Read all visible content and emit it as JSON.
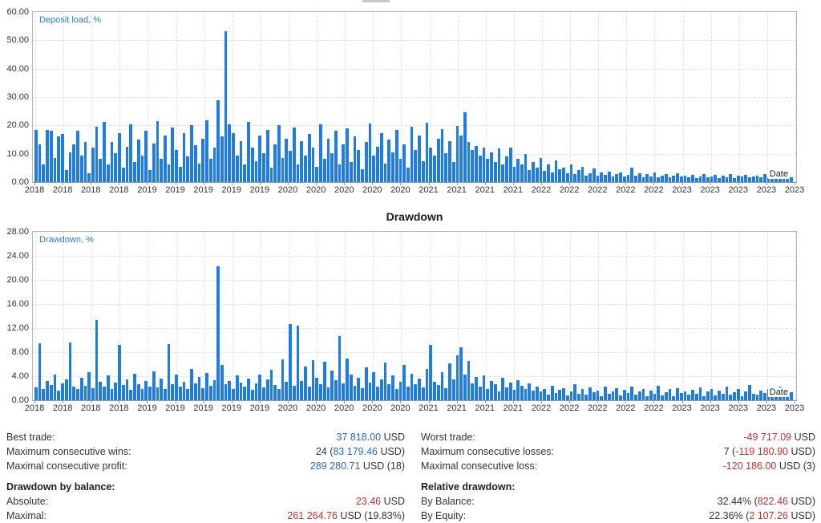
{
  "colors": {
    "bar_blue": "#1e7ce2",
    "value_blue": "#2b68c8",
    "value_red": "#cf2e2e",
    "text": "#333333",
    "grid": "#e1e1e1",
    "axis_border": "#b6b6b6",
    "series_label_blue": "#2e7bd6"
  },
  "chart_data": [
    {
      "type": "bar",
      "title": "",
      "series_label": "Deposit load, %",
      "xlabel": "Date",
      "ylabel": "",
      "ylim": [
        0,
        60
      ],
      "grid": true,
      "legend_position": "top-left-inside",
      "y_ticks": [
        "60.00",
        "50.00",
        "40.00",
        "30.00",
        "20.00",
        "10.00",
        "0.00"
      ],
      "x_ticks": [
        "2018",
        "2018",
        "2018",
        "2018",
        "2019",
        "2019",
        "2019",
        "2019",
        "2019",
        "2020",
        "2020",
        "2020",
        "2020",
        "2020",
        "2021",
        "2021",
        "2021",
        "2021",
        "2022",
        "2022",
        "2022",
        "2022",
        "2022",
        "2023",
        "2023",
        "2023",
        "2023",
        "2023"
      ],
      "values": [
        18.5,
        13.2,
        6.1,
        18.3,
        18.0,
        8.4,
        16.2,
        17.1,
        4.2,
        10.5,
        13.4,
        18.2,
        9.3,
        14.1,
        3.2,
        12.3,
        19.5,
        8.1,
        21.2,
        6.3,
        14.2,
        10.1,
        17.3,
        5.2,
        12.4,
        20.3,
        7.2,
        15.1,
        9.4,
        18.1,
        4.3,
        13.5,
        21.4,
        8.2,
        16.3,
        6.2,
        19.2,
        11.3,
        5.3,
        17.2,
        9.1,
        20.1,
        13.1,
        6.4,
        15.3,
        21.8,
        8.3,
        12.1,
        29.0,
        16.1,
        53.1,
        20.5,
        17.2,
        9.2,
        14.3,
        6.1,
        21.1,
        12.2,
        7.3,
        16.4,
        10.2,
        18.3,
        5.1,
        13.2,
        20.2,
        8.4,
        15.2,
        11.1,
        19.3,
        6.2,
        14.4,
        9.3,
        17.1,
        12.3,
        5.4,
        20.4,
        8.2,
        15.4,
        10.3,
        18.2,
        6.3,
        13.3,
        19.1,
        7.1,
        16.2,
        11.2,
        4.4,
        14.2,
        20.6,
        9.4,
        12.4,
        17.4,
        6.4,
        15.1,
        10.4,
        18.4,
        8.1,
        13.4,
        5.2,
        19.4,
        11.4,
        16.3,
        7.4,
        21.0,
        12.2,
        9.2,
        15.3,
        18.6,
        10.1,
        14.3,
        7.2,
        19.8,
        16.4,
        24.5,
        14.2,
        11.3,
        12.8,
        9.4,
        12.2,
        8.3,
        10.4,
        7.2,
        11.8,
        6.3,
        9.1,
        12.1,
        5.4,
        8.2,
        6.1,
        9.8,
        4.3,
        7.1,
        5.2,
        8.4,
        4.1,
        6.2,
        3.3,
        7.6,
        4.4,
        5.1,
        3.2,
        6.1,
        2.8,
        4.2,
        5.3,
        2.4,
        3.1,
        4.8,
        2.2,
        3.4,
        2.6,
        3.8,
        2.1,
        2.9,
        3.3,
        1.9,
        2.5,
        5.0,
        2.2,
        3.1,
        1.8,
        2.7,
        2.0,
        3.5,
        1.7,
        2.4,
        2.9,
        1.6,
        2.2,
        3.0,
        1.9,
        2.3,
        1.7,
        2.6,
        1.5,
        2.1,
        2.8,
        1.6,
        2.0,
        2.5,
        1.4,
        2.2,
        1.8,
        2.7,
        1.5,
        2.3,
        1.9,
        2.6,
        1.6,
        2.1,
        2.4,
        1.7,
        2.8,
        1.5,
        2.0,
        2.6,
        1.8,
        2.3,
        3.2,
        1.6
      ]
    },
    {
      "type": "bar",
      "title": "Drawdown",
      "series_label": "Drawdown, %",
      "xlabel": "Date",
      "ylabel": "",
      "ylim": [
        0,
        28
      ],
      "grid": true,
      "legend_position": "top-left-inside",
      "y_ticks": [
        "28.00",
        "24.00",
        "20.00",
        "16.00",
        "12.00",
        "8.00",
        "4.00",
        "0.00"
      ],
      "x_ticks": [
        "2018",
        "2018",
        "2018",
        "2018",
        "2019",
        "2019",
        "2019",
        "2019",
        "2019",
        "2020",
        "2020",
        "2020",
        "2020",
        "2020",
        "2021",
        "2021",
        "2021",
        "2021",
        "2022",
        "2022",
        "2022",
        "2022",
        "2022",
        "2023",
        "2023",
        "2023",
        "2023",
        "2023"
      ],
      "values": [
        2.1,
        9.4,
        1.8,
        3.2,
        2.5,
        4.3,
        1.6,
        2.8,
        3.5,
        9.6,
        2.2,
        1.9,
        3.8,
        2.4,
        4.6,
        2.0,
        13.3,
        3.1,
        2.3,
        4.1,
        1.8,
        2.9,
        9.2,
        2.5,
        3.4,
        1.7,
        4.4,
        2.6,
        1.9,
        3.2,
        2.2,
        4.8,
        2.1,
        3.6,
        1.8,
        9.3,
        2.7,
        4.2,
        2.3,
        3.1,
        1.9,
        5.2,
        2.8,
        3.9,
        2.0,
        4.5,
        2.4,
        3.3,
        22.3,
        5.8,
        2.6,
        3.2,
        1.8,
        4.1,
        2.9,
        2.2,
        3.6,
        1.7,
        2.8,
        4.3,
        2.1,
        3.4,
        5.1,
        2.5,
        1.9,
        6.8,
        3.0,
        12.6,
        2.4,
        12.4,
        3.2,
        5.6,
        2.3,
        6.6,
        3.8,
        2.7,
        6.4,
        2.1,
        4.9,
        3.3,
        10.7,
        2.8,
        6.9,
        4.2,
        2.4,
        3.7,
        2.0,
        5.4,
        2.9,
        4.6,
        2.2,
        3.5,
        6.2,
        2.6,
        4.1,
        1.9,
        3.0,
        5.8,
        2.3,
        4.4,
        2.7,
        3.6,
        2.1,
        5.2,
        9.2,
        3.1,
        2.5,
        4.7,
        2.0,
        6.1,
        3.4,
        7.5,
        8.8,
        4.2,
        6.5,
        2.8,
        3.9,
        2.3,
        4.1,
        1.8,
        3.2,
        2.6,
        1.5,
        3.7,
        2.1,
        2.9,
        1.7,
        3.3,
        2.4,
        1.9,
        2.8,
        1.6,
        2.2,
        1.4,
        1.9,
        0.9,
        2.4,
        1.2,
        1.7,
        2.0,
        0.8,
        1.5,
        2.6,
        1.1,
        1.8,
        0.9,
        2.1,
        1.3,
        1.6,
        0.7,
        2.3,
        1.0,
        1.5,
        2.0,
        0.8,
        1.7,
        1.2,
        2.2,
        0.9,
        1.4,
        1.9,
        0.7,
        1.6,
        1.1,
        2.4,
        0.8,
        1.3,
        1.8,
        0.6,
        2.0,
        1.2,
        1.5,
        0.9,
        1.7,
        1.1,
        2.1,
        0.7,
        1.4,
        1.9,
        0.8,
        1.6,
        1.0,
        2.3,
        0.9,
        1.3,
        1.8,
        0.7,
        1.5,
        2.5,
        1.1,
        0.9,
        1.6,
        1.2,
        1.9,
        0.8,
        1.4,
        2.2,
        1.0,
        1.7,
        1.3
      ]
    }
  ],
  "stats": {
    "columns": [
      {
        "rows1": [
          {
            "label": "Best trade:",
            "segments": [
              {
                "text": "37 818.00",
                "color": "blue"
              },
              {
                "text": " USD",
                "color": "plain"
              }
            ]
          },
          {
            "label": "Maximum consecutive wins:",
            "segments": [
              {
                "text": "24 (",
                "color": "plain"
              },
              {
                "text": "83 179.46",
                "color": "blue"
              },
              {
                "text": " USD)",
                "color": "plain"
              }
            ]
          },
          {
            "label": "Maximal consecutive profit:",
            "segments": [
              {
                "text": "289 280.71",
                "color": "blue"
              },
              {
                "text": " USD (18)",
                "color": "plain"
              }
            ]
          }
        ],
        "header": "Drawdown by balance:",
        "rows2": [
          {
            "label": "Absolute:",
            "segments": [
              {
                "text": "23.46",
                "color": "red"
              },
              {
                "text": " USD",
                "color": "plain"
              }
            ]
          },
          {
            "label": "Maximal:",
            "segments": [
              {
                "text": "261 264.76",
                "color": "red"
              },
              {
                "text": " USD (19.83%)",
                "color": "plain"
              }
            ]
          }
        ]
      },
      {
        "rows1": [
          {
            "label": "Worst trade:",
            "segments": [
              {
                "text": "-49 717.09",
                "color": "red"
              },
              {
                "text": " USD",
                "color": "plain"
              }
            ]
          },
          {
            "label": "Maximum consecutive losses:",
            "segments": [
              {
                "text": "7 (",
                "color": "plain"
              },
              {
                "text": "-119 180.90",
                "color": "red"
              },
              {
                "text": " USD)",
                "color": "plain"
              }
            ]
          },
          {
            "label": "Maximal consecutive loss:",
            "segments": [
              {
                "text": "-120 186.00",
                "color": "red"
              },
              {
                "text": " USD (3)",
                "color": "plain"
              }
            ]
          }
        ],
        "header": "Relative drawdown:",
        "rows2": [
          {
            "label": "By Balance:",
            "segments": [
              {
                "text": "32.44% (",
                "color": "plain"
              },
              {
                "text": "822.46",
                "color": "red"
              },
              {
                "text": " USD)",
                "color": "plain"
              }
            ]
          },
          {
            "label": "By Equity:",
            "segments": [
              {
                "text": "22.36% (",
                "color": "plain"
              },
              {
                "text": "2 107.26",
                "color": "red"
              },
              {
                "text": " USD)",
                "color": "plain"
              }
            ]
          }
        ]
      }
    ]
  }
}
